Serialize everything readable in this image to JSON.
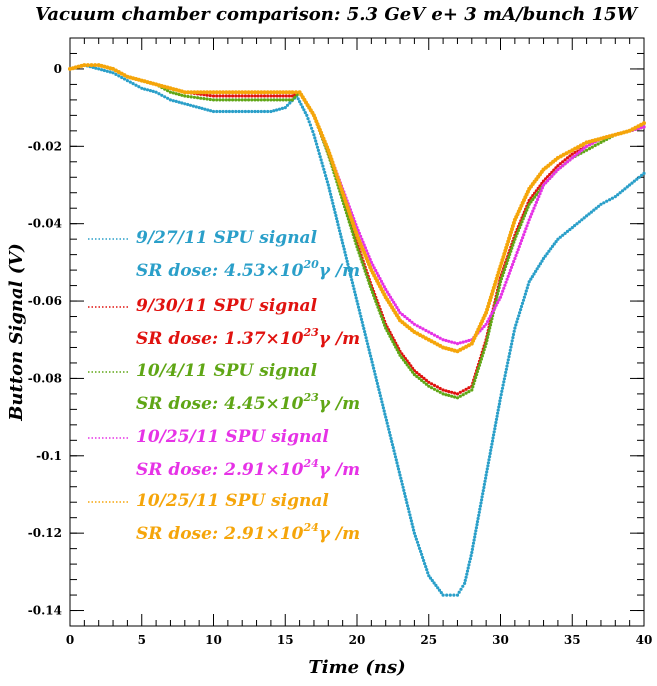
{
  "chart_data": {
    "type": "scatter",
    "title": "Vacuum chamber comparison: 5.3 GeV  e+  3 mA/bunch 15W",
    "xlabel": "Time (ns)",
    "ylabel": "Button Signal (V)",
    "xlim": [
      0,
      40
    ],
    "ylim": [
      -0.144,
      0.008
    ],
    "x_ticks": [
      0,
      5,
      10,
      15,
      20,
      25,
      30,
      35,
      40
    ],
    "y_ticks": [
      0,
      -0.02,
      -0.04,
      -0.06,
      -0.08,
      -0.1,
      -0.12,
      -0.14
    ],
    "x_tick_labels": [
      "0",
      "5",
      "10",
      "15",
      "20",
      "25",
      "30",
      "35",
      "40"
    ],
    "y_tick_labels": [
      "0",
      "-0.02",
      "-0.04",
      "-0.06",
      "-0.08",
      "-0.1",
      "-0.12",
      "-0.14"
    ],
    "grid": false,
    "legend_position": "left-center",
    "series": [
      {
        "name": "9/27/11 SPU signal",
        "dose_label": "SR dose: 4.53×10",
        "dose_exp": "20",
        "dose_unit": "γ /m",
        "color": "#2a9fc9",
        "points": [
          [
            0,
            0
          ],
          [
            1,
            0.001
          ],
          [
            2,
            0
          ],
          [
            3,
            -0.001
          ],
          [
            4,
            -0.003
          ],
          [
            5,
            -0.005
          ],
          [
            6,
            -0.006
          ],
          [
            7,
            -0.008
          ],
          [
            8,
            -0.009
          ],
          [
            9,
            -0.01
          ],
          [
            10,
            -0.011
          ],
          [
            12,
            -0.011
          ],
          [
            14,
            -0.011
          ],
          [
            15,
            -0.01
          ],
          [
            15.8,
            -0.007
          ],
          [
            16.5,
            -0.012
          ],
          [
            17,
            -0.017
          ],
          [
            18,
            -0.03
          ],
          [
            19,
            -0.045
          ],
          [
            20,
            -0.06
          ],
          [
            21,
            -0.075
          ],
          [
            22,
            -0.09
          ],
          [
            23,
            -0.105
          ],
          [
            24,
            -0.12
          ],
          [
            25,
            -0.131
          ],
          [
            26,
            -0.136
          ],
          [
            27,
            -0.136
          ],
          [
            27.5,
            -0.133
          ],
          [
            28,
            -0.125
          ],
          [
            29,
            -0.105
          ],
          [
            30,
            -0.085
          ],
          [
            31,
            -0.067
          ],
          [
            32,
            -0.055
          ],
          [
            33,
            -0.049
          ],
          [
            34,
            -0.044
          ],
          [
            35,
            -0.041
          ],
          [
            36,
            -0.038
          ],
          [
            37,
            -0.035
          ],
          [
            38,
            -0.033
          ],
          [
            39,
            -0.03
          ],
          [
            40,
            -0.027
          ]
        ]
      },
      {
        "name": "9/30/11 SPU signal",
        "dose_label": "SR dose: 1.37×10",
        "dose_exp": "23",
        "dose_unit": "γ /m",
        "color": "#e0120f",
        "points": [
          [
            0,
            0
          ],
          [
            1,
            0.001
          ],
          [
            2,
            0.001
          ],
          [
            3,
            0
          ],
          [
            4,
            -0.002
          ],
          [
            5,
            -0.003
          ],
          [
            6,
            -0.004
          ],
          [
            7,
            -0.005
          ],
          [
            8,
            -0.006
          ],
          [
            10,
            -0.007
          ],
          [
            12,
            -0.007
          ],
          [
            14,
            -0.007
          ],
          [
            15.5,
            -0.007
          ],
          [
            16,
            -0.006
          ],
          [
            17,
            -0.012
          ],
          [
            18,
            -0.022
          ],
          [
            19,
            -0.033
          ],
          [
            20,
            -0.045
          ],
          [
            21,
            -0.056
          ],
          [
            22,
            -0.066
          ],
          [
            23,
            -0.073
          ],
          [
            24,
            -0.078
          ],
          [
            25,
            -0.081
          ],
          [
            26,
            -0.083
          ],
          [
            27,
            -0.084
          ],
          [
            28,
            -0.082
          ],
          [
            29,
            -0.07
          ],
          [
            30,
            -0.054
          ],
          [
            31,
            -0.043
          ],
          [
            32,
            -0.034
          ],
          [
            33,
            -0.029
          ],
          [
            34,
            -0.025
          ],
          [
            35,
            -0.022
          ],
          [
            36,
            -0.02
          ],
          [
            37,
            -0.018
          ],
          [
            38,
            -0.017
          ],
          [
            39,
            -0.016
          ],
          [
            40,
            -0.015
          ]
        ]
      },
      {
        "name": "10/4/11 SPU signal",
        "dose_label": "SR dose: 4.45×10",
        "dose_exp": "23",
        "dose_unit": "γ /m",
        "color": "#5fa615",
        "points": [
          [
            0,
            0
          ],
          [
            1,
            0.001
          ],
          [
            2,
            0.001
          ],
          [
            3,
            0
          ],
          [
            4,
            -0.002
          ],
          [
            5,
            -0.003
          ],
          [
            6,
            -0.004
          ],
          [
            7,
            -0.006
          ],
          [
            8,
            -0.007
          ],
          [
            10,
            -0.008
          ],
          [
            12,
            -0.008
          ],
          [
            14,
            -0.008
          ],
          [
            15.5,
            -0.008
          ],
          [
            16,
            -0.006
          ],
          [
            17,
            -0.012
          ],
          [
            18,
            -0.022
          ],
          [
            19,
            -0.034
          ],
          [
            20,
            -0.046
          ],
          [
            21,
            -0.057
          ],
          [
            22,
            -0.067
          ],
          [
            23,
            -0.074
          ],
          [
            24,
            -0.079
          ],
          [
            25,
            -0.082
          ],
          [
            26,
            -0.084
          ],
          [
            27,
            -0.085
          ],
          [
            28,
            -0.083
          ],
          [
            29,
            -0.071
          ],
          [
            30,
            -0.055
          ],
          [
            31,
            -0.044
          ],
          [
            32,
            -0.035
          ],
          [
            33,
            -0.03
          ],
          [
            34,
            -0.026
          ],
          [
            35,
            -0.023
          ],
          [
            36,
            -0.021
          ],
          [
            37,
            -0.019
          ],
          [
            38,
            -0.017
          ],
          [
            39,
            -0.016
          ],
          [
            40,
            -0.015
          ]
        ]
      },
      {
        "name": "10/25/11 SPU signal",
        "dose_label": "SR dose: 2.91×10",
        "dose_exp": "24",
        "dose_unit": "γ /m",
        "color": "#e632e6",
        "points": [
          [
            0,
            0
          ],
          [
            1,
            0.001
          ],
          [
            2,
            0.001
          ],
          [
            3,
            0
          ],
          [
            4,
            -0.002
          ],
          [
            5,
            -0.003
          ],
          [
            6,
            -0.004
          ],
          [
            7,
            -0.005
          ],
          [
            8,
            -0.006
          ],
          [
            10,
            -0.006
          ],
          [
            12,
            -0.006
          ],
          [
            14,
            -0.006
          ],
          [
            15.5,
            -0.006
          ],
          [
            16,
            -0.006
          ],
          [
            17,
            -0.012
          ],
          [
            18,
            -0.021
          ],
          [
            19,
            -0.031
          ],
          [
            20,
            -0.041
          ],
          [
            21,
            -0.05
          ],
          [
            22,
            -0.057
          ],
          [
            23,
            -0.063
          ],
          [
            24,
            -0.066
          ],
          [
            25,
            -0.068
          ],
          [
            26,
            -0.07
          ],
          [
            27,
            -0.071
          ],
          [
            28,
            -0.07
          ],
          [
            29,
            -0.066
          ],
          [
            30,
            -0.059
          ],
          [
            31,
            -0.049
          ],
          [
            32,
            -0.039
          ],
          [
            33,
            -0.03
          ],
          [
            34,
            -0.026
          ],
          [
            35,
            -0.023
          ],
          [
            36,
            -0.02
          ],
          [
            37,
            -0.018
          ],
          [
            38,
            -0.017
          ],
          [
            39,
            -0.016
          ],
          [
            40,
            -0.015
          ]
        ]
      },
      {
        "name": "10/25/11 SPU signal",
        "dose_label": "SR dose: 2.91×10",
        "dose_exp": "24",
        "dose_unit": "γ /m",
        "color": "#f5a50a",
        "points": [
          [
            0,
            0
          ],
          [
            1,
            0.001
          ],
          [
            2,
            0.001
          ],
          [
            3,
            0
          ],
          [
            4,
            -0.002
          ],
          [
            5,
            -0.003
          ],
          [
            6,
            -0.004
          ],
          [
            7,
            -0.005
          ],
          [
            8,
            -0.006
          ],
          [
            10,
            -0.006
          ],
          [
            12,
            -0.006
          ],
          [
            14,
            -0.006
          ],
          [
            15.5,
            -0.006
          ],
          [
            16,
            -0.006
          ],
          [
            17,
            -0.012
          ],
          [
            18,
            -0.021
          ],
          [
            19,
            -0.032
          ],
          [
            20,
            -0.043
          ],
          [
            21,
            -0.052
          ],
          [
            22,
            -0.059
          ],
          [
            23,
            -0.065
          ],
          [
            24,
            -0.068
          ],
          [
            25,
            -0.07
          ],
          [
            26,
            -0.072
          ],
          [
            27,
            -0.073
          ],
          [
            28,
            -0.071
          ],
          [
            29,
            -0.063
          ],
          [
            30,
            -0.051
          ],
          [
            31,
            -0.039
          ],
          [
            32,
            -0.031
          ],
          [
            33,
            -0.026
          ],
          [
            34,
            -0.023
          ],
          [
            35,
            -0.021
          ],
          [
            36,
            -0.019
          ],
          [
            37,
            -0.018
          ],
          [
            38,
            -0.017
          ],
          [
            39,
            -0.016
          ],
          [
            40,
            -0.014
          ]
        ]
      }
    ]
  }
}
